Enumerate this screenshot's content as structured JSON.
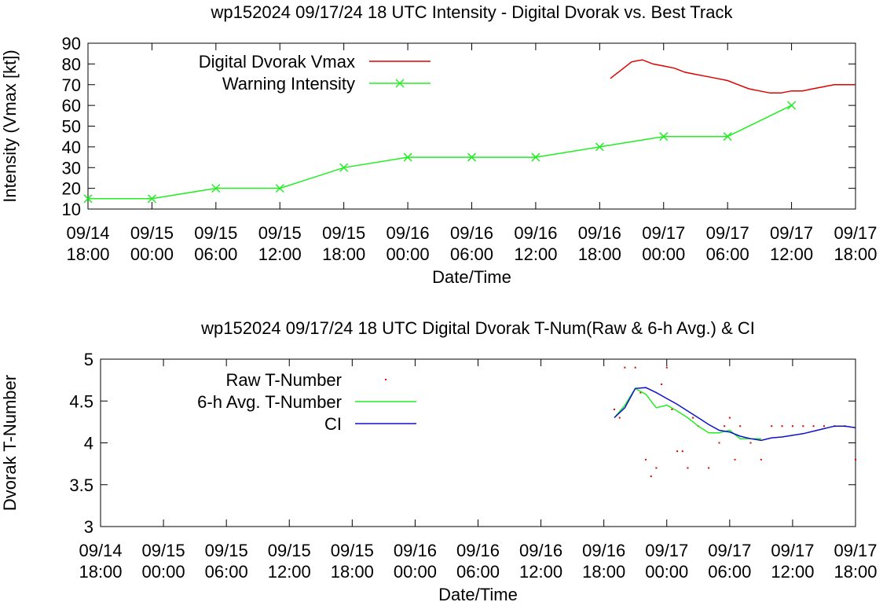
{
  "chart_data": [
    {
      "type": "line",
      "title": "wp152024 09/17/24  18 UTC Intensity - Digital Dvorak vs. Best Track",
      "xlabel": "Date/Time",
      "ylabel": "Intensity (Vmax [kt])",
      "ylim": [
        10,
        90
      ],
      "yticks": [
        "10",
        "20",
        "30",
        "40",
        "50",
        "60",
        "70",
        "80",
        "90"
      ],
      "xlim": [
        "2024-09-14 18:00",
        "2024-09-17 18:00"
      ],
      "xtick_labels": [
        [
          "09/14",
          "18:00"
        ],
        [
          "09/15",
          "00:00"
        ],
        [
          "09/15",
          "06:00"
        ],
        [
          "09/15",
          "12:00"
        ],
        [
          "09/15",
          "18:00"
        ],
        [
          "09/16",
          "00:00"
        ],
        [
          "09/16",
          "06:00"
        ],
        [
          "09/16",
          "12:00"
        ],
        [
          "09/16",
          "18:00"
        ],
        [
          "09/17",
          "00:00"
        ],
        [
          "09/17",
          "06:00"
        ],
        [
          "09/17",
          "12:00"
        ],
        [
          "09/17",
          "18:00"
        ]
      ],
      "grid": false,
      "legend_position": "top-left",
      "series": [
        {
          "name": "Digital Dvorak Vmax",
          "color": "#e00000",
          "x": [
            "09/16 19:00",
            "09/16 20:00",
            "09/16 21:00",
            "09/16 22:00",
            "09/16 23:00",
            "09/17 00:00",
            "09/17 01:00",
            "09/17 02:00",
            "09/17 03:00",
            "09/17 04:00",
            "09/17 05:00",
            "09/17 06:00",
            "09/17 07:00",
            "09/17 08:00",
            "09/17 09:00",
            "09/17 10:00",
            "09/17 11:00",
            "09/17 12:00",
            "09/17 13:00",
            "09/17 14:00",
            "09/17 15:00",
            "09/17 16:00",
            "09/17 17:00",
            "09/17 18:00"
          ],
          "values": [
            73,
            77,
            81,
            82,
            80,
            79,
            78,
            76,
            75,
            74,
            73,
            72,
            70,
            68,
            67,
            66,
            66,
            67,
            67,
            68,
            69,
            70,
            70,
            70
          ]
        },
        {
          "name": "Warning Intensity",
          "color": "#22ee22",
          "marker": "x",
          "x": [
            "09/14 18:00",
            "09/15 00:00",
            "09/15 06:00",
            "09/15 12:00",
            "09/15 18:00",
            "09/16 00:00",
            "09/16 06:00",
            "09/16 12:00",
            "09/16 18:00",
            "09/17 00:00",
            "09/17 06:00",
            "09/17 12:00"
          ],
          "values": [
            15,
            15,
            20,
            20,
            30,
            35,
            35,
            35,
            40,
            45,
            45,
            60
          ]
        }
      ]
    },
    {
      "type": "line",
      "title": "wp152024 09/17/24  18 UTC Digital Dvorak T-Num(Raw & 6-h Avg.) & CI",
      "xlabel": "Date/Time",
      "ylabel": "Dvorak T-Number",
      "ylim": [
        3,
        5
      ],
      "yticks": [
        "3",
        "3.5",
        "4",
        "4.5",
        "5"
      ],
      "xlim": [
        "2024-09-14 18:00",
        "2024-09-17 18:00"
      ],
      "xtick_labels": [
        [
          "09/14",
          "18:00"
        ],
        [
          "09/15",
          "00:00"
        ],
        [
          "09/15",
          "06:00"
        ],
        [
          "09/15",
          "12:00"
        ],
        [
          "09/15",
          "18:00"
        ],
        [
          "09/16",
          "00:00"
        ],
        [
          "09/16",
          "06:00"
        ],
        [
          "09/16",
          "12:00"
        ],
        [
          "09/16",
          "18:00"
        ],
        [
          "09/17",
          "00:00"
        ],
        [
          "09/17",
          "06:00"
        ],
        [
          "09/17",
          "12:00"
        ],
        [
          "09/17",
          "18:00"
        ]
      ],
      "grid": false,
      "legend_position": "top-left",
      "series": [
        {
          "name": "Raw T-Number",
          "color": "#e00000",
          "marker": "dot",
          "x": [
            "09/16 19:00",
            "09/16 19:30",
            "09/16 20:00",
            "09/16 21:00",
            "09/16 21:30",
            "09/16 22:00",
            "09/16 22:30",
            "09/16 23:00",
            "09/16 23:30",
            "09/17 00:00",
            "09/17 00:30",
            "09/17 01:00",
            "09/17 01:30",
            "09/17 02:00",
            "09/17 02:30",
            "09/17 03:00",
            "09/17 04:00",
            "09/17 05:00",
            "09/17 05:30",
            "09/17 06:00",
            "09/17 06:30",
            "09/17 07:00",
            "09/17 08:00",
            "09/17 09:00",
            "09/17 10:00",
            "09/17 11:00",
            "09/17 12:00",
            "09/17 13:00",
            "09/17 14:00",
            "09/17 15:00",
            "09/17 16:00",
            "09/17 17:00",
            "09/17 18:00"
          ],
          "values": [
            4.4,
            4.3,
            4.9,
            4.9,
            4.6,
            3.8,
            3.6,
            3.7,
            4.7,
            4.9,
            4.4,
            3.9,
            3.9,
            3.7,
            4.3,
            4.2,
            3.7,
            4.0,
            4.2,
            4.3,
            3.8,
            4.2,
            4.0,
            3.8,
            4.2,
            4.2,
            4.2,
            4.2,
            4.2,
            4.2,
            4.2,
            4.2,
            3.8
          ]
        },
        {
          "name": "6-h Avg. T-Number",
          "color": "#22ee22",
          "x": [
            "09/16 19:00",
            "09/16 20:00",
            "09/16 21:00",
            "09/16 22:00",
            "09/16 23:00",
            "09/17 00:00",
            "09/17 01:00",
            "09/17 02:00",
            "09/17 03:00",
            "09/17 04:00",
            "09/17 05:00",
            "09/17 06:00",
            "09/17 07:00",
            "09/17 08:00",
            "09/17 09:00"
          ],
          "values": [
            4.3,
            4.45,
            4.65,
            4.58,
            4.42,
            4.45,
            4.38,
            4.3,
            4.2,
            4.12,
            4.12,
            4.15,
            4.05,
            4.05,
            4.05
          ]
        },
        {
          "name": "CI",
          "color": "#1010cc",
          "x": [
            "09/16 19:00",
            "09/16 20:00",
            "09/16 21:00",
            "09/16 22:00",
            "09/16 23:00",
            "09/17 00:00",
            "09/17 01:00",
            "09/17 02:00",
            "09/17 03:00",
            "09/17 04:00",
            "09/17 05:00",
            "09/17 06:00",
            "09/17 07:00",
            "09/17 08:00",
            "09/17 09:00",
            "09/17 10:00",
            "09/17 11:00",
            "09/17 12:00",
            "09/17 13:00",
            "09/17 14:00",
            "09/17 15:00",
            "09/17 16:00",
            "09/17 17:00",
            "09/17 18:00"
          ],
          "values": [
            4.3,
            4.42,
            4.65,
            4.66,
            4.6,
            4.53,
            4.46,
            4.38,
            4.3,
            4.22,
            4.15,
            4.13,
            4.08,
            4.05,
            4.03,
            4.06,
            4.07,
            4.09,
            4.11,
            4.14,
            4.17,
            4.2,
            4.2,
            4.18
          ]
        }
      ]
    }
  ]
}
